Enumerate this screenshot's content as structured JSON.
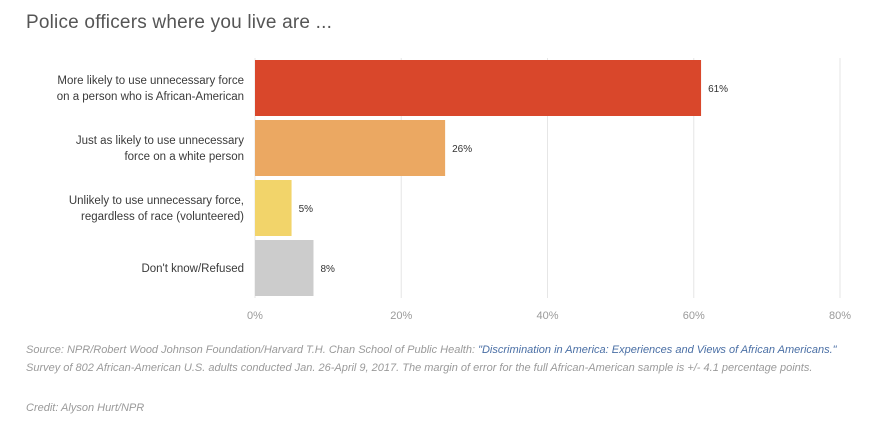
{
  "title": "Police officers where you live are ...",
  "chart_data": {
    "type": "bar",
    "orientation": "horizontal",
    "categories": [
      [
        "More likely to use unnecessary force",
        "on a person who is African-American"
      ],
      [
        "Just as likely to use unnecessary",
        "force on a white person"
      ],
      [
        "Unlikely to use unnecessary force,",
        "regardless of race (volunteered)"
      ],
      [
        "Don't know/Refused"
      ]
    ],
    "values": [
      61,
      26,
      5,
      8
    ],
    "value_labels": [
      "61%",
      "26%",
      "5%",
      "8%"
    ],
    "colors": [
      "#d9472b",
      "#eba862",
      "#f2d46a",
      "#cccccc"
    ],
    "xlim": [
      0,
      80
    ],
    "x_ticks": [
      0,
      20,
      40,
      60,
      80
    ],
    "x_tick_labels": [
      "0%",
      "20%",
      "40%",
      "60%",
      "80%"
    ],
    "grid": true,
    "xlabel": "",
    "ylabel": ""
  },
  "footer": {
    "source_prefix": "Source: NPR/Robert Wood Johnson Foundation/Harvard T.H. Chan School of Public Health: ",
    "source_link": "\"Discrimination in America: Experiences and Views of African Americans.\"",
    "source_suffix": " Survey of 802 African-American U.S. adults conducted Jan. 26-April 9, 2017. The margin of error for the full African-American sample is +/- 4.1 percentage points.",
    "credit": "Credit: Alyson Hurt/NPR"
  }
}
